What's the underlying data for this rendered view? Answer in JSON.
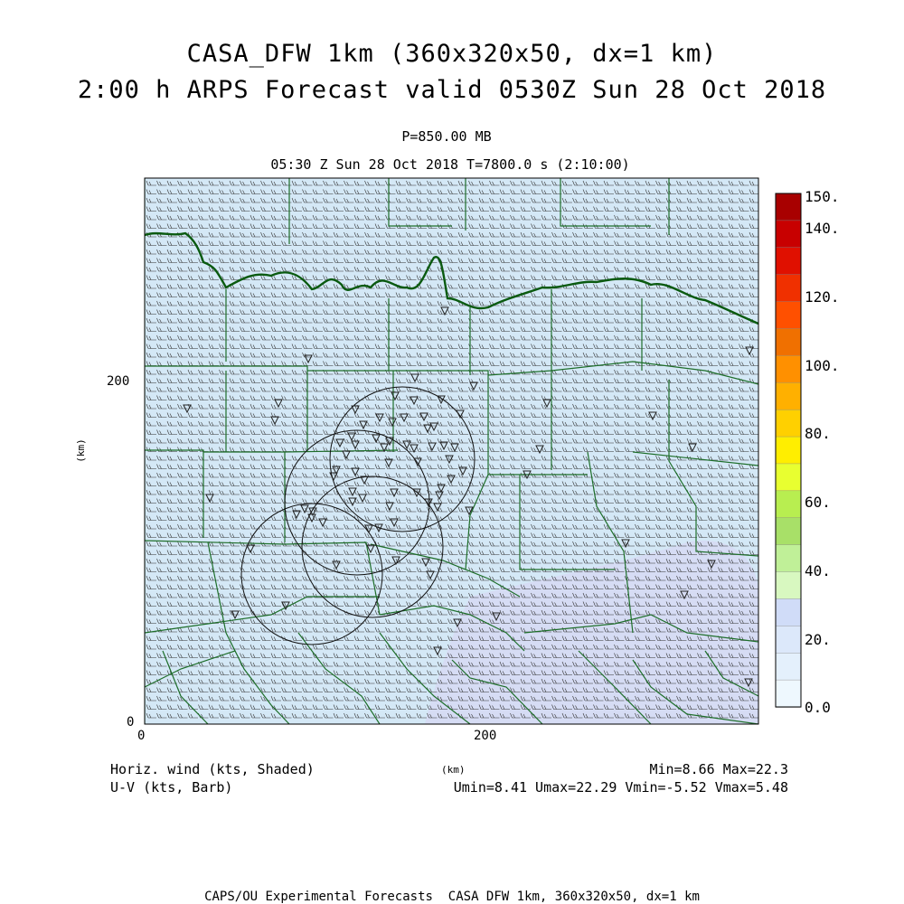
{
  "title": {
    "line1": "CASA_DFW 1km (360x320x50, dx=1 km)",
    "line2": "2:00 h ARPS Forecast valid 0530Z Sun 28 Oct 2018"
  },
  "subtitle": {
    "pressure": "P=850.00 MB",
    "time": "05:30 Z Sun 28 Oct 2018   T=7800.0 s (2:10:00)"
  },
  "axes": {
    "x_unit": "(km)",
    "y_unit": "(km)",
    "x_ticks": [
      "0",
      "200"
    ],
    "y_ticks": [
      "0",
      "200"
    ],
    "x_range_km": [
      0,
      360
    ],
    "y_range_km": [
      0,
      320
    ]
  },
  "colorbar": {
    "labels": [
      "150.",
      "140.",
      "120.",
      "100.",
      "80.",
      "60.",
      "40.",
      "20.",
      "0.0"
    ],
    "colors": [
      "#a80000",
      "#c80000",
      "#e01000",
      "#f03000",
      "#ff5000",
      "#f07000",
      "#ff9000",
      "#ffb000",
      "#ffd000",
      "#ffee00",
      "#e8ff30",
      "#b8ee50",
      "#a8e068",
      "#c0f098",
      "#d8f8c0",
      "#d0dcf8",
      "#dce8fa",
      "#e4f0fc",
      "#eef8fe"
    ]
  },
  "field_colors": {
    "background": "#d4e8f6",
    "lavender": "#d6dcf4",
    "border": "#1e6e2a",
    "river": "#0a5a10"
  },
  "legend": {
    "shaded": "Horiz. wind (kts, Shaded)",
    "barb": "U-V (kts, Barb)",
    "minmax": "Min=8.66 Max=22.3",
    "uvrange": "Umin=8.41 Umax=22.29 Vmin=-5.52 Vmax=5.48"
  },
  "footer": "CAPS/OU Experimental Forecasts  CASA DFW 1km, 360x320x50, dx=1 km",
  "icons": {
    "radar_site": "down-triangle-icon",
    "radar_range": "range-circle"
  }
}
